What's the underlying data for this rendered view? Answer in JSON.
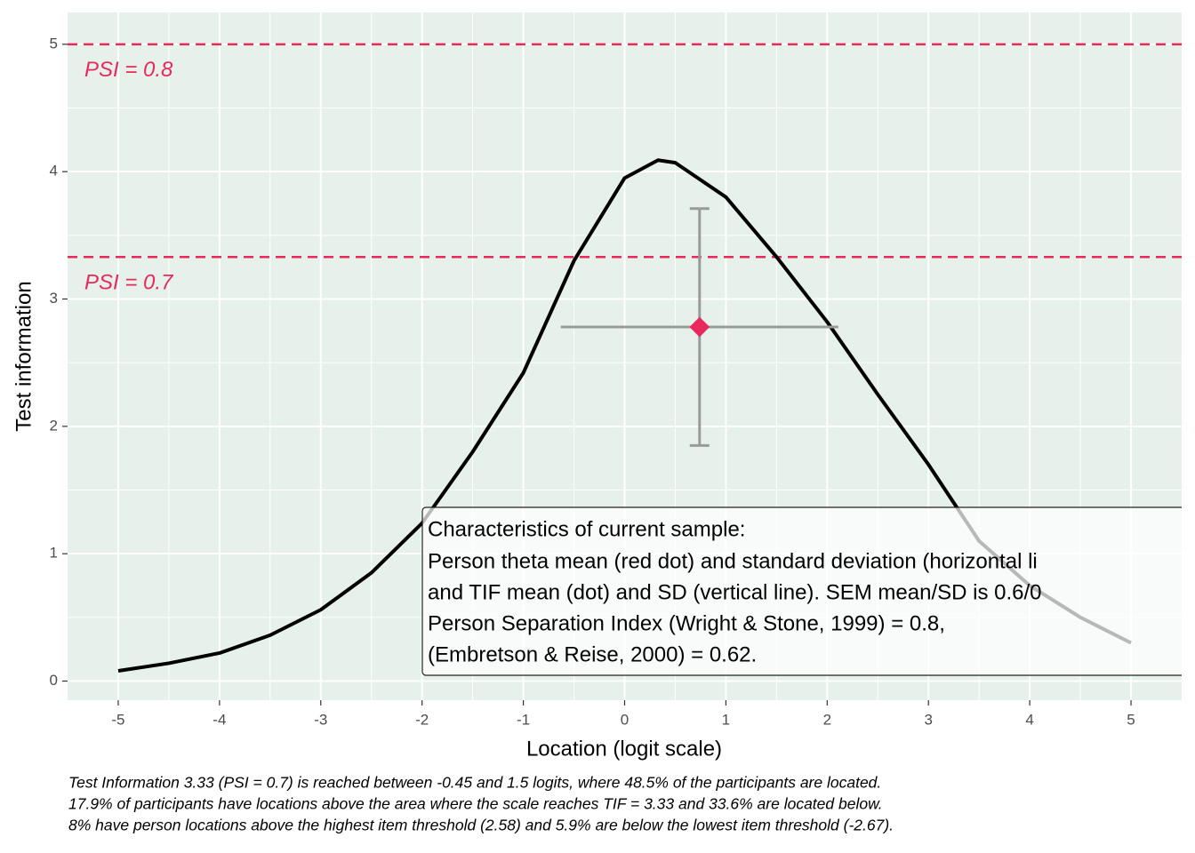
{
  "chart_data": {
    "type": "line",
    "x_label": "Location (logit scale)",
    "y_label": "Test information",
    "x": [
      -5,
      -4.5,
      -4,
      -3.5,
      -3,
      -2.5,
      -2,
      -1.5,
      -1,
      -0.5,
      0,
      0.33,
      0.5,
      1,
      1.5,
      2,
      2.5,
      3,
      3.5,
      4,
      4.5,
      5
    ],
    "series": [
      {
        "color": "#000000",
        "values": [
          0.08,
          0.14,
          0.22,
          0.36,
          0.56,
          0.85,
          1.24,
          1.8,
          2.42,
          3.3,
          3.95,
          4.09,
          4.07,
          3.8,
          3.33,
          2.82,
          2.25,
          1.7,
          1.1,
          0.75,
          0.5,
          0.3
        ]
      }
    ],
    "point": {
      "x": 0.74,
      "y": 2.78,
      "x_sd": 1.37,
      "y_sd": 0.93,
      "color": "#e8295e",
      "error_color": "#9a9a9a"
    },
    "hlines": [
      {
        "y": 5,
        "label": "PSI = 0.8"
      },
      {
        "y": 3.33,
        "label": "PSI = 0.7"
      }
    ],
    "hline_color": "#e8295e",
    "xlim": [
      -5.5,
      5.5
    ],
    "ylim": [
      -0.15,
      5.25
    ],
    "xticks": [
      -5,
      -4,
      -3,
      -2,
      -1,
      0,
      1,
      2,
      3,
      4,
      5
    ],
    "yticks": [
      0,
      1,
      2,
      3,
      4,
      5
    ],
    "x_minor_ticks": [
      -4.5,
      -3.5,
      -2.5,
      -1.5,
      -0.5,
      0.5,
      1.5,
      2.5,
      3.5,
      4.5
    ],
    "y_minor_ticks": [
      0.5,
      1.5,
      2.5,
      3.5,
      4.5
    ],
    "grid": true,
    "annotation_box": [
      "Characteristics of current sample:",
      "Person theta mean (red dot) and standard deviation (horizontal li",
      "and TIF mean (dot) and SD (vertical line). SEM mean/SD is 0.6/0",
      "Person Separation Index (Wright & Stone, 1999) = 0.8,",
      "(Embretson & Reise, 2000) = 0.62."
    ],
    "caption": [
      "Test Information 3.33 (PSI = 0.7) is reached between -0.45 and 1.5 logits, where 48.5% of the participants are located.",
      "17.9% of participants have locations above the area where the scale reaches TIF = 3.33 and 33.6% are located below.",
      "8% have person locations above the highest item threshold (2.58) and 5.9% are below the lowest item threshold (-2.67)."
    ]
  }
}
